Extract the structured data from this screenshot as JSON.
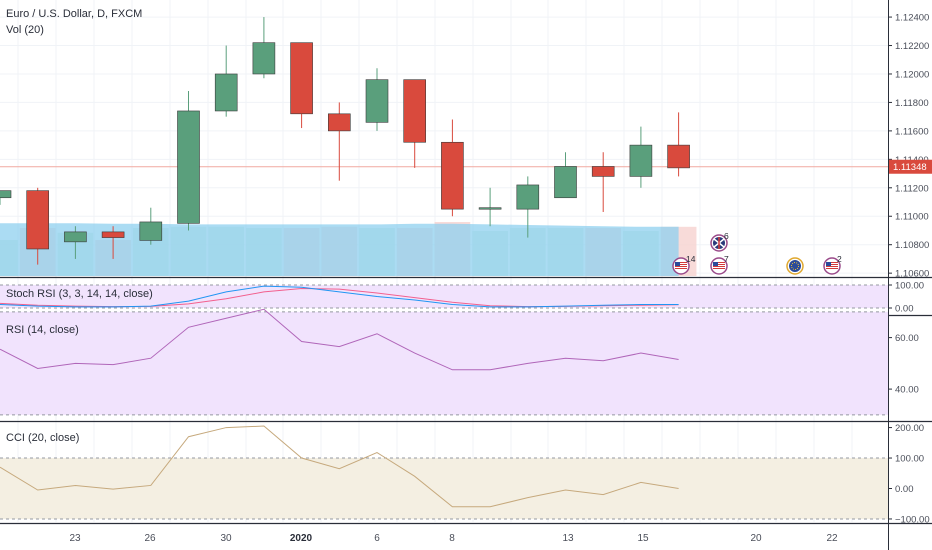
{
  "header": {
    "title": "Euro / U.S. Dollar, D, FXCM",
    "volume_label": "Vol (20)"
  },
  "colors": {
    "up": "#5a9f7c",
    "down": "#d94a3d",
    "volume_ma": "#8fd0ef",
    "last_line": "#f1a9a0",
    "price_tag": "#d94a3d",
    "stoch_k": "#2196f3",
    "stoch_d": "#f2608e",
    "rsi_line": "#b066b9",
    "rsi_band": "#f1e3fd",
    "cci_line": "#c6a97d",
    "cci_band": "#f4efe2"
  },
  "axes": {
    "price_ticks": [
      "1.12400",
      "1.12200",
      "1.12000",
      "1.11800",
      "1.11600",
      "1.11400",
      "1.11200",
      "1.11000",
      "1.10800",
      "1.10600"
    ],
    "price_last": "1.11348",
    "stoch_ticks": [
      "100.00",
      "0.00"
    ],
    "rsi_ticks": [
      "60.00",
      "40.00"
    ],
    "cci_ticks": [
      "200.00",
      "100.00",
      "0.00",
      "−100.00"
    ],
    "date_ticks": [
      {
        "label": "23",
        "bold": false
      },
      {
        "label": "26",
        "bold": false
      },
      {
        "label": "30",
        "bold": false
      },
      {
        "label": "2020",
        "bold": true
      },
      {
        "label": "6",
        "bold": false
      },
      {
        "label": "8",
        "bold": false
      },
      {
        "label": "13",
        "bold": false
      },
      {
        "label": "15",
        "bold": false
      },
      {
        "label": "20",
        "bold": false
      },
      {
        "label": "22",
        "bold": false
      }
    ]
  },
  "indicators": {
    "stoch_title": "Stoch RSI (3, 3, 14, 14, close)",
    "rsi_title": "RSI (14, close)",
    "cci_title": "CCI (20, close)"
  },
  "events": [
    {
      "flag": "us",
      "count": "14"
    },
    {
      "flag": "uk",
      "count": "6"
    },
    {
      "flag": "us",
      "count": "7"
    },
    {
      "flag": "eu",
      "count": ""
    },
    {
      "flag": "us",
      "count": "2"
    }
  ],
  "chart_data": {
    "type": "candlestick",
    "symbol": "Euro / U.S. Dollar, D, FXCM",
    "price_range": [
      1.1058,
      1.1252
    ],
    "candles": [
      {
        "o": 1.1113,
        "h": 1.1118,
        "l": 1.1108,
        "c": 1.1118
      },
      {
        "o": 1.1118,
        "h": 1.112,
        "l": 1.1066,
        "c": 1.1077
      },
      {
        "o": 1.1082,
        "h": 1.1093,
        "l": 1.107,
        "c": 1.1089
      },
      {
        "o": 1.1089,
        "h": 1.1093,
        "l": 1.107,
        "c": 1.1085
      },
      {
        "o": 1.1083,
        "h": 1.1106,
        "l": 1.108,
        "c": 1.1096
      },
      {
        "o": 1.1095,
        "h": 1.1188,
        "l": 1.109,
        "c": 1.1174
      },
      {
        "o": 1.1174,
        "h": 1.122,
        "l": 1.117,
        "c": 1.12
      },
      {
        "o": 1.12,
        "h": 1.124,
        "l": 1.1197,
        "c": 1.1222
      },
      {
        "o": 1.1222,
        "h": 1.1222,
        "l": 1.1162,
        "c": 1.1172
      },
      {
        "o": 1.1172,
        "h": 1.118,
        "l": 1.1125,
        "c": 1.116
      },
      {
        "o": 1.1166,
        "h": 1.1204,
        "l": 1.116,
        "c": 1.1196
      },
      {
        "o": 1.1196,
        "h": 1.1196,
        "l": 1.1134,
        "c": 1.1152
      },
      {
        "o": 1.1152,
        "h": 1.1168,
        "l": 1.11,
        "c": 1.1105
      },
      {
        "o": 1.1105,
        "h": 1.112,
        "l": 1.1093,
        "c": 1.1106
      },
      {
        "o": 1.1105,
        "h": 1.1128,
        "l": 1.1085,
        "c": 1.1122
      },
      {
        "o": 1.1113,
        "h": 1.1145,
        "l": 1.1113,
        "c": 1.1135
      },
      {
        "o": 1.1135,
        "h": 1.1145,
        "l": 1.1103,
        "c": 1.1128
      },
      {
        "o": 1.1128,
        "h": 1.1163,
        "l": 1.112,
        "c": 1.115
      },
      {
        "o": 1.115,
        "h": 1.1173,
        "l": 1.1128,
        "c": 1.1134
      }
    ],
    "volume_range": [
      0,
      100
    ],
    "volume": [
      60,
      80,
      72,
      60,
      80,
      82,
      82,
      80,
      80,
      82,
      80,
      80,
      90,
      75,
      80,
      80,
      80,
      75,
      82
    ],
    "volume_ma": [
      88,
      88,
      88,
      87,
      87,
      86,
      86,
      86,
      86,
      86,
      86,
      87,
      87,
      86,
      85,
      84,
      83,
      82,
      82
    ],
    "stoch_rsi": {
      "range": [
        0,
        100
      ],
      "k": [
        15,
        8,
        5,
        5,
        8,
        30,
        70,
        95,
        90,
        70,
        50,
        35,
        15,
        5,
        5,
        8,
        12,
        15,
        15
      ],
      "d": [
        20,
        12,
        8,
        6,
        7,
        18,
        40,
        70,
        85,
        82,
        65,
        45,
        25,
        10,
        6,
        7,
        10,
        12,
        14
      ]
    },
    "rsi": {
      "range": [
        28,
        68
      ],
      "values": [
        55.5,
        48,
        50,
        49.5,
        52,
        64,
        67.5,
        71,
        58.5,
        56.5,
        61.5,
        54,
        47.5,
        47.5,
        50,
        52,
        51,
        54,
        51.5
      ]
    },
    "cci": {
      "range": [
        -110,
        215
      ],
      "values": [
        70,
        -5,
        10,
        -2,
        10,
        170,
        200,
        205,
        100,
        65,
        118,
        40,
        -60,
        -60,
        -30,
        -5,
        -20,
        20,
        0
      ]
    }
  }
}
